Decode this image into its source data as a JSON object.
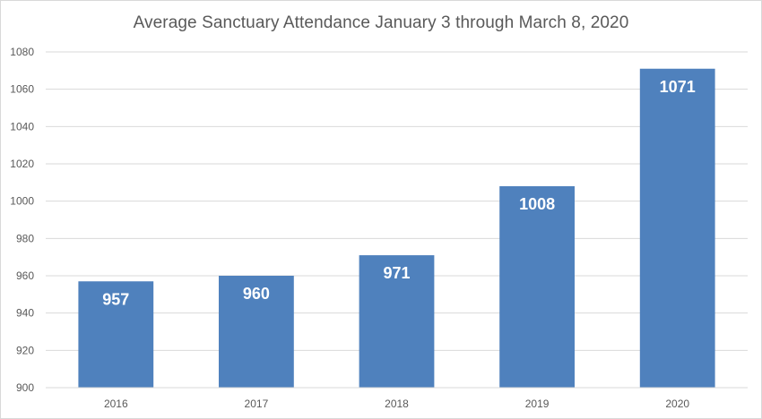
{
  "chart_data": {
    "type": "bar",
    "title": "Average Sanctuary Attendance January 3 through March 8, 2020",
    "xlabel": "",
    "ylabel": "",
    "categories": [
      "2016",
      "2017",
      "2018",
      "2019",
      "2020"
    ],
    "values": [
      957,
      960,
      971,
      1008,
      1071
    ],
    "data_labels": [
      "957",
      "960",
      "971",
      "1008",
      "1071"
    ],
    "ylim": [
      900,
      1080
    ],
    "yticks": [
      900,
      920,
      940,
      960,
      980,
      1000,
      1020,
      1040,
      1060,
      1080
    ],
    "grid": true,
    "legend": "none",
    "bar_color": "#4f81bd",
    "grid_color": "#d9d9d9"
  }
}
